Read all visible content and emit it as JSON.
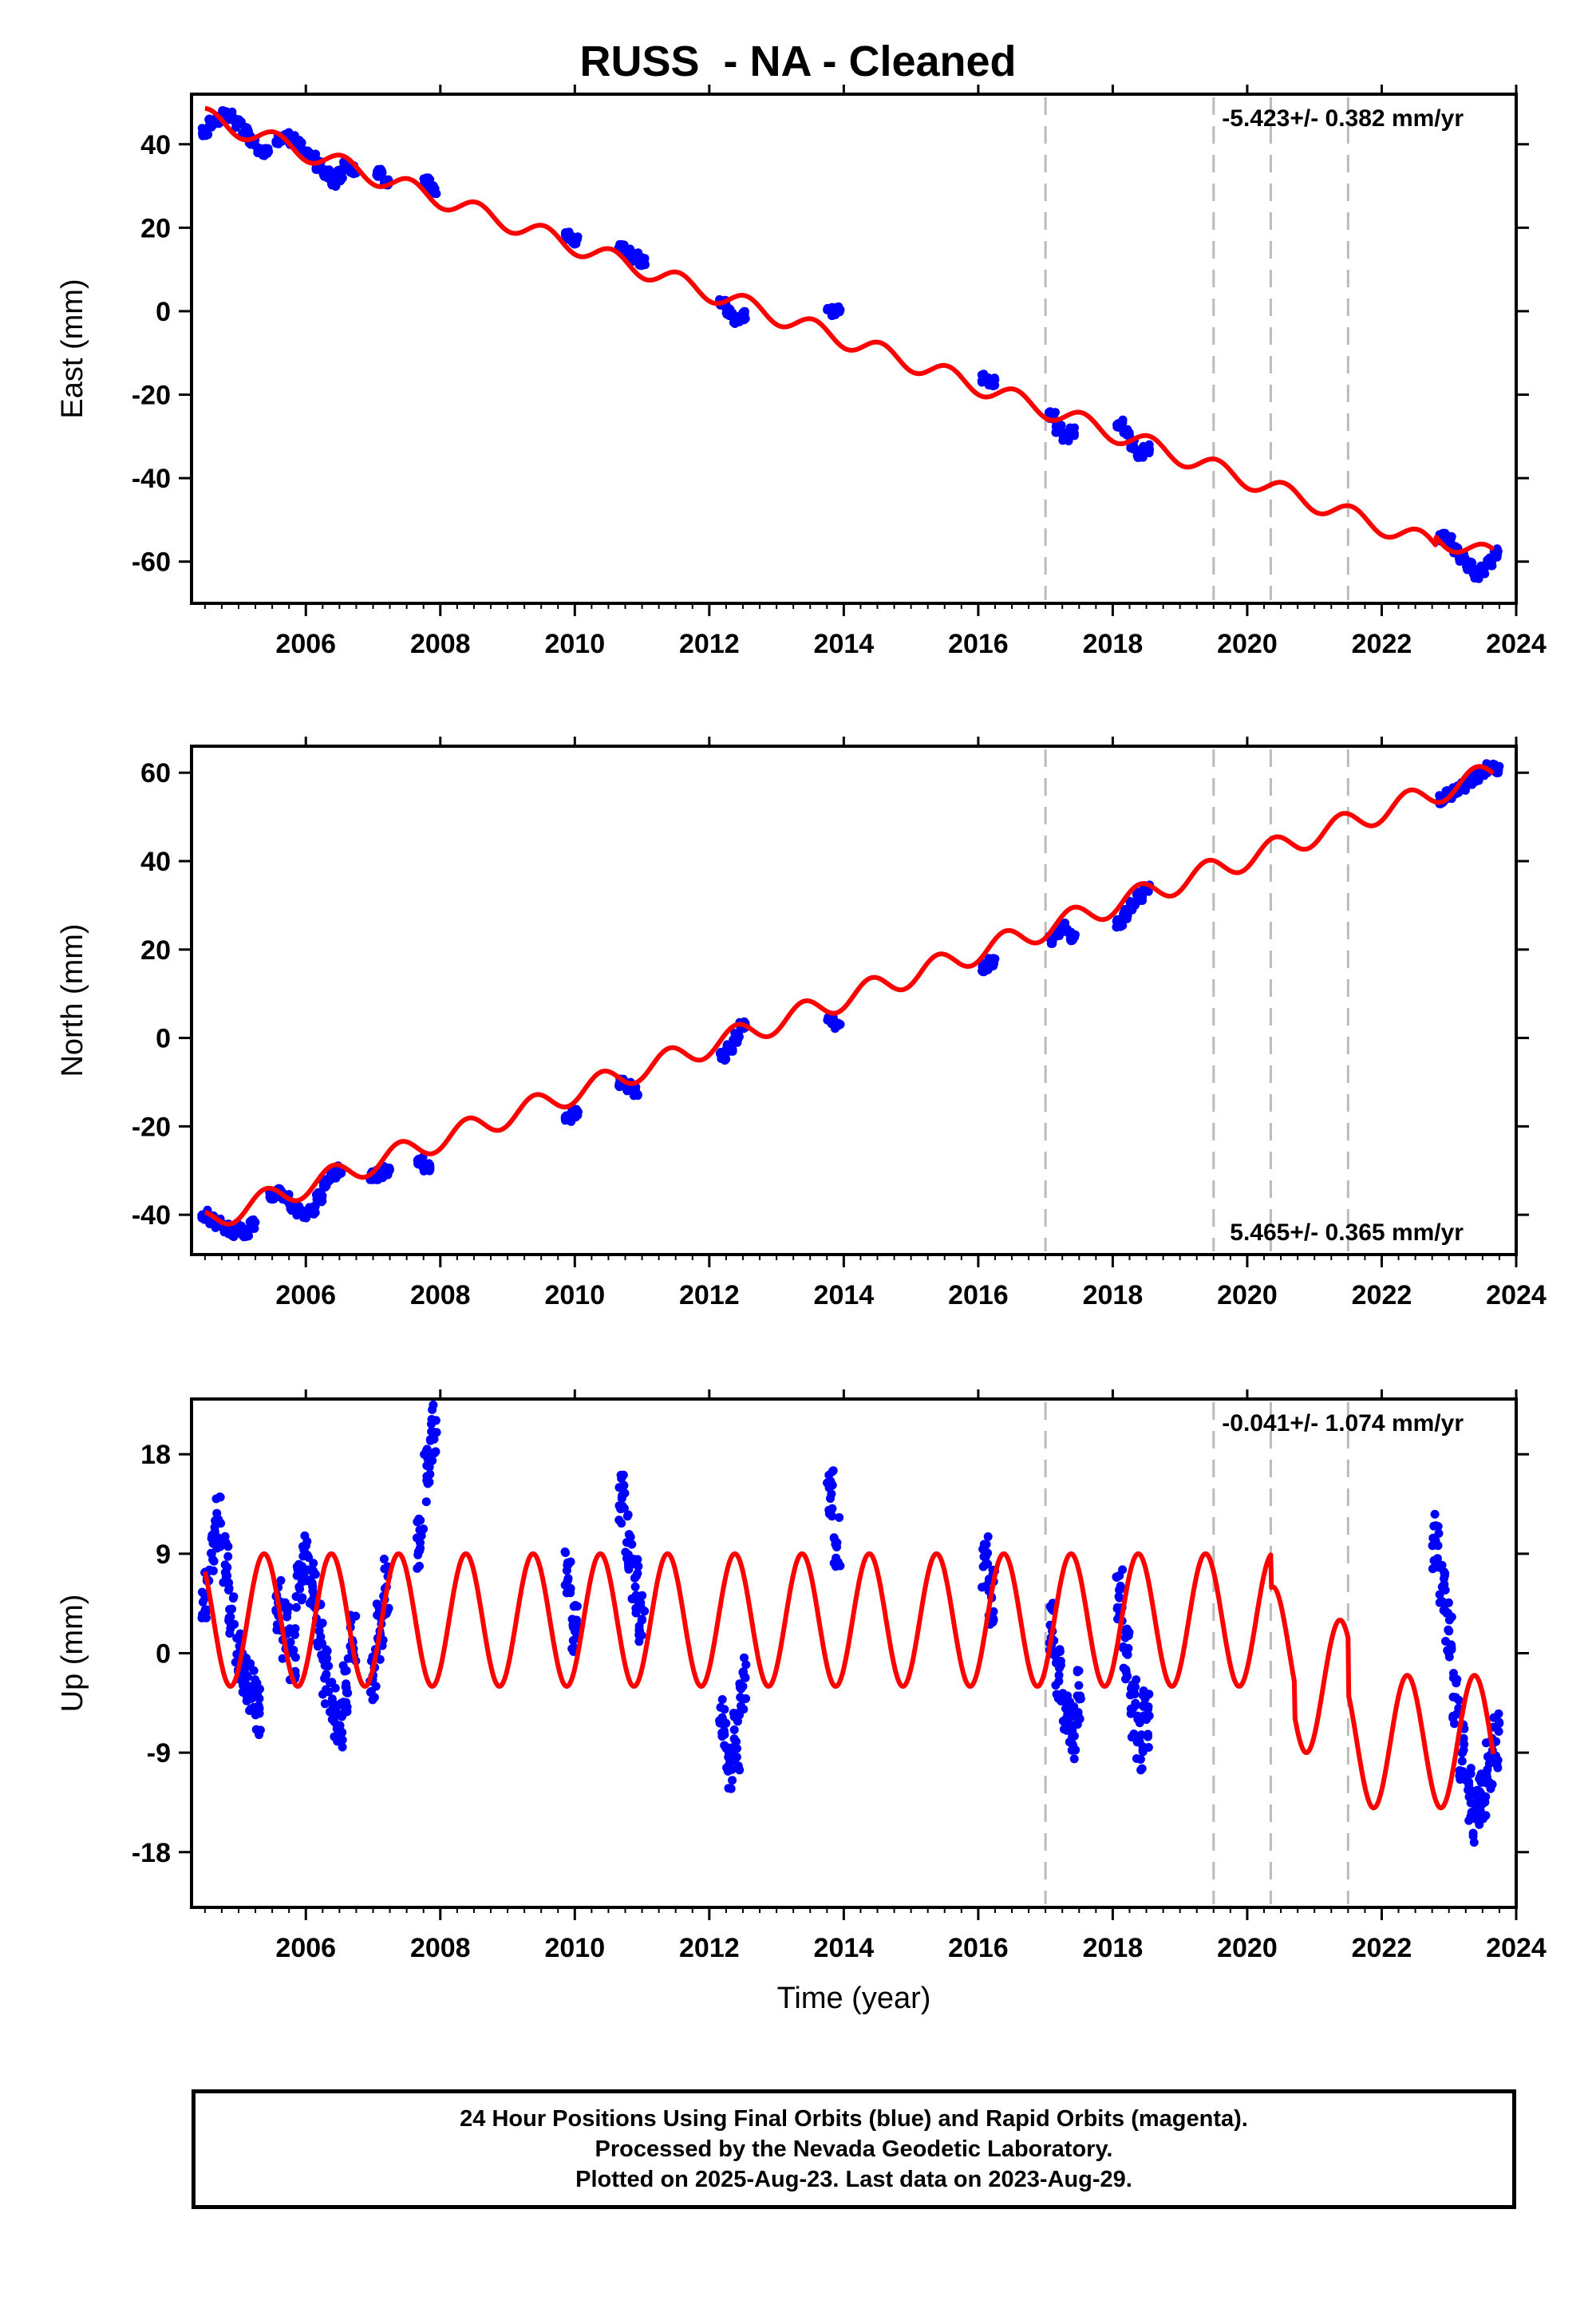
{
  "title": "RUSS  - NA - Cleaned",
  "footer": {
    "lines": [
      "24 Hour Positions Using Final Orbits (blue) and Rapid Orbits (magenta).",
      "Processed by the Nevada Geodetic Laboratory.",
      "Plotted on 2025-Aug-23. Last data on 2023-Aug-29."
    ]
  },
  "colors": {
    "data_points": "#0000ff",
    "model_fit": "#ff0000",
    "event_lines": "#bbbbbb",
    "axes": "#000000"
  },
  "chart_data": [
    {
      "type": "scatter",
      "panel": "east",
      "ylabel": "East (mm)",
      "xlabel": "",
      "xlim": [
        2004.3,
        2024.0
      ],
      "ylim": [
        -70,
        52
      ],
      "xticks": [
        2006,
        2008,
        2010,
        2012,
        2014,
        2016,
        2018,
        2020,
        2022,
        2024
      ],
      "yticks": [
        -60,
        -40,
        -20,
        0,
        20,
        40
      ],
      "rate_text": "-5.423+/- 0.382 mm/yr",
      "rate_position": "top-right",
      "event_lines": [
        2017.0,
        2019.5,
        2020.35,
        2021.5
      ],
      "series": [
        {
          "role": "points",
          "segments": [
            {
              "x": [
                2004.5,
                2004.6,
                2004.7,
                2004.8,
                2004.9,
                2005.0,
                2005.1,
                2005.2,
                2005.3,
                2005.4
              ],
              "y": [
                43,
                45,
                46,
                47,
                47,
                45,
                43,
                41,
                39,
                38
              ]
            },
            {
              "x": [
                2005.6,
                2005.7,
                2005.8,
                2005.9,
                2006.0,
                2006.1,
                2006.2,
                2006.3,
                2006.4,
                2006.5
              ],
              "y": [
                41,
                42,
                41,
                40,
                38,
                37,
                35,
                33,
                31,
                32
              ]
            },
            {
              "x": [
                2006.5,
                2006.6,
                2006.7
              ],
              "y": [
                33,
                35,
                34
              ]
            },
            {
              "x": [
                2007.1,
                2007.2
              ],
              "y": [
                33,
                31
              ]
            },
            {
              "x": [
                2007.8,
                2007.9
              ],
              "y": [
                31,
                29
              ]
            },
            {
              "x": [
                2009.9,
                2010.0
              ],
              "y": [
                18,
                17
              ]
            },
            {
              "x": [
                2010.7,
                2010.8,
                2010.9,
                2011.0
              ],
              "y": [
                15,
                14,
                13,
                12
              ]
            },
            {
              "x": [
                2012.2,
                2012.3,
                2012.4,
                2012.5
              ],
              "y": [
                2,
                0,
                -2,
                -1
              ]
            },
            {
              "x": [
                2013.8,
                2013.9
              ],
              "y": [
                0,
                0
              ]
            },
            {
              "x": [
                2016.1,
                2016.2
              ],
              "y": [
                -16,
                -17
              ]
            },
            {
              "x": [
                2017.1,
                2017.2,
                2017.3,
                2017.4
              ],
              "y": [
                -25,
                -28,
                -30,
                -29
              ]
            },
            {
              "x": [
                2018.1,
                2018.2,
                2018.3,
                2018.4,
                2018.5
              ],
              "y": [
                -27,
                -29,
                -32,
                -34,
                -33
              ]
            },
            {
              "x": [
                2022.9,
                2023.0,
                2023.1,
                2023.2,
                2023.3,
                2023.4,
                2023.5,
                2023.6,
                2023.7
              ],
              "y": [
                -54,
                -55,
                -57,
                -59,
                -61,
                -63,
                -62,
                -60,
                -58
              ]
            }
          ]
        },
        {
          "role": "fit",
          "intercept_at_2004_5": 46.5,
          "rate": -5.6,
          "annual_amplitude": 2.2,
          "annual_phase": 2004.55,
          "offsets": [
            {
              "x": 2022.8,
              "dy": 2.0
            }
          ],
          "gaps": [
            [
              2020.35,
              2020.36
            ]
          ]
        }
      ]
    },
    {
      "type": "scatter",
      "panel": "north",
      "ylabel": "North (mm)",
      "xlabel": "",
      "xlim": [
        2004.3,
        2024.0
      ],
      "ylim": [
        -49,
        66
      ],
      "xticks": [
        2006,
        2008,
        2010,
        2012,
        2014,
        2016,
        2018,
        2020,
        2022,
        2024
      ],
      "yticks": [
        -40,
        -20,
        0,
        20,
        40,
        60
      ],
      "rate_text": "5.465+/- 0.365 mm/yr",
      "rate_position": "bottom-right",
      "event_lines": [
        2017.0,
        2019.5,
        2020.35,
        2021.5
      ],
      "series": [
        {
          "role": "points",
          "segments": [
            {
              "x": [
                2004.5,
                2004.6,
                2004.7,
                2004.8,
                2004.9,
                2005.0,
                2005.1,
                2005.2
              ],
              "y": [
                -40,
                -41,
                -42,
                -43,
                -44,
                -43,
                -44,
                -42
              ]
            },
            {
              "x": [
                2005.5,
                2005.6,
                2005.7,
                2005.8,
                2005.9,
                2006.0,
                2006.1,
                2006.2,
                2006.3,
                2006.4,
                2006.5
              ],
              "y": [
                -36,
                -35,
                -36,
                -38,
                -39,
                -40,
                -39,
                -36,
                -33,
                -31,
                -30
              ]
            },
            {
              "x": [
                2007.0,
                2007.1,
                2007.2
              ],
              "y": [
                -31,
                -31,
                -30
              ]
            },
            {
              "x": [
                2007.7,
                2007.8
              ],
              "y": [
                -28,
                -29
              ]
            },
            {
              "x": [
                2009.9,
                2010.0
              ],
              "y": [
                -18,
                -17
              ]
            },
            {
              "x": [
                2010.7,
                2010.8,
                2010.9
              ],
              "y": [
                -10,
                -11,
                -12
              ]
            },
            {
              "x": [
                2012.2,
                2012.3,
                2012.4,
                2012.5
              ],
              "y": [
                -4,
                -2,
                0,
                3
              ]
            },
            {
              "x": [
                2013.8,
                2013.9
              ],
              "y": [
                4,
                3
              ]
            },
            {
              "x": [
                2016.1,
                2016.2
              ],
              "y": [
                16,
                17
              ]
            },
            {
              "x": [
                2017.1,
                2017.2,
                2017.3,
                2017.4
              ],
              "y": [
                22,
                24,
                25,
                23
              ]
            },
            {
              "x": [
                2018.1,
                2018.2,
                2018.3,
                2018.4,
                2018.5
              ],
              "y": [
                26,
                28,
                30,
                32,
                34
              ]
            },
            {
              "x": [
                2022.9,
                2023.0,
                2023.1,
                2023.2,
                2023.3,
                2023.4,
                2023.5,
                2023.6,
                2023.7
              ],
              "y": [
                54,
                55,
                56,
                57,
                58,
                59,
                60,
                61,
                61
              ]
            }
          ]
        },
        {
          "role": "fit",
          "intercept_at_2004_5": -41.5,
          "rate": 5.3,
          "annual_amplitude": 2.6,
          "annual_phase": 2004.4,
          "offsets": [],
          "gaps": []
        }
      ]
    },
    {
      "type": "scatter",
      "panel": "up",
      "ylabel": "Up (mm)",
      "xlabel": "Time (year)",
      "xlim": [
        2004.3,
        2024.0
      ],
      "ylim": [
        -23,
        23
      ],
      "xticks": [
        2006,
        2008,
        2010,
        2012,
        2014,
        2016,
        2018,
        2020,
        2022,
        2024
      ],
      "yticks": [
        -18,
        -9,
        0,
        9,
        18
      ],
      "rate_text": "-0.041+/- 1.074 mm/yr",
      "rate_position": "top-right",
      "event_lines": [
        2017.0,
        2019.5,
        2020.35,
        2021.5
      ],
      "series": [
        {
          "role": "points",
          "segments": [
            {
              "x": [
                2004.5,
                2004.6,
                2004.7,
                2004.8,
                2004.9,
                2005.0,
                2005.1,
                2005.2,
                2005.3
              ],
              "y": [
                5,
                9,
                12,
                8,
                4,
                0,
                -2,
                -3,
                -5
              ]
            },
            {
              "x": [
                2005.6,
                2005.7,
                2005.8,
                2005.9,
                2006.0,
                2006.1,
                2006.2,
                2006.3,
                2006.4,
                2006.5
              ],
              "y": [
                4,
                2,
                0,
                6,
                9,
                6,
                2,
                -2,
                -5,
                -7
              ]
            },
            {
              "x": [
                2006.6,
                2006.7
              ],
              "y": [
                -3,
                1
              ]
            },
            {
              "x": [
                2007.0,
                2007.1,
                2007.2
              ],
              "y": [
                -2,
                2,
                6
              ]
            },
            {
              "x": [
                2007.7,
                2007.8,
                2007.9
              ],
              "y": [
                10,
                16,
                20
              ]
            },
            {
              "x": [
                2009.9,
                2010.0
              ],
              "y": [
                8,
                2
              ]
            },
            {
              "x": [
                2010.7,
                2010.8,
                2010.9,
                2011.0
              ],
              "y": [
                14,
                10,
                6,
                3
              ]
            },
            {
              "x": [
                2012.2,
                2012.3,
                2012.4,
                2012.5
              ],
              "y": [
                -6,
                -10,
                -8,
                -3
              ]
            },
            {
              "x": [
                2013.8,
                2013.9
              ],
              "y": [
                14,
                10
              ]
            },
            {
              "x": [
                2016.1,
                2016.2
              ],
              "y": [
                8,
                5
              ]
            },
            {
              "x": [
                2017.1,
                2017.2,
                2017.3,
                2017.4,
                2017.5
              ],
              "y": [
                2,
                -2,
                -5,
                -7,
                -4
              ]
            },
            {
              "x": [
                2018.1,
                2018.2,
                2018.3,
                2018.4,
                2018.5
              ],
              "y": [
                5,
                0,
                -5,
                -8,
                -6
              ]
            },
            {
              "x": [
                2022.8,
                2022.9,
                2023.0,
                2023.1,
                2023.2,
                2023.3,
                2023.4,
                2023.5,
                2023.6,
                2023.7
              ],
              "y": [
                10,
                6,
                2,
                -4,
                -9,
                -13,
                -15,
                -13,
                -10,
                -8
              ]
            }
          ]
        },
        {
          "role": "fit",
          "intercept_at_2004_5": 3,
          "rate": 0,
          "annual_amplitude": 6.0,
          "annual_phase": 2004.38,
          "offsets": [
            {
              "x": 2020.35,
              "dy": -3.0
            },
            {
              "x": 2020.7,
              "dy": -3.0
            },
            {
              "x": 2021.5,
              "dy": -5.0
            }
          ],
          "gaps": []
        }
      ]
    }
  ]
}
